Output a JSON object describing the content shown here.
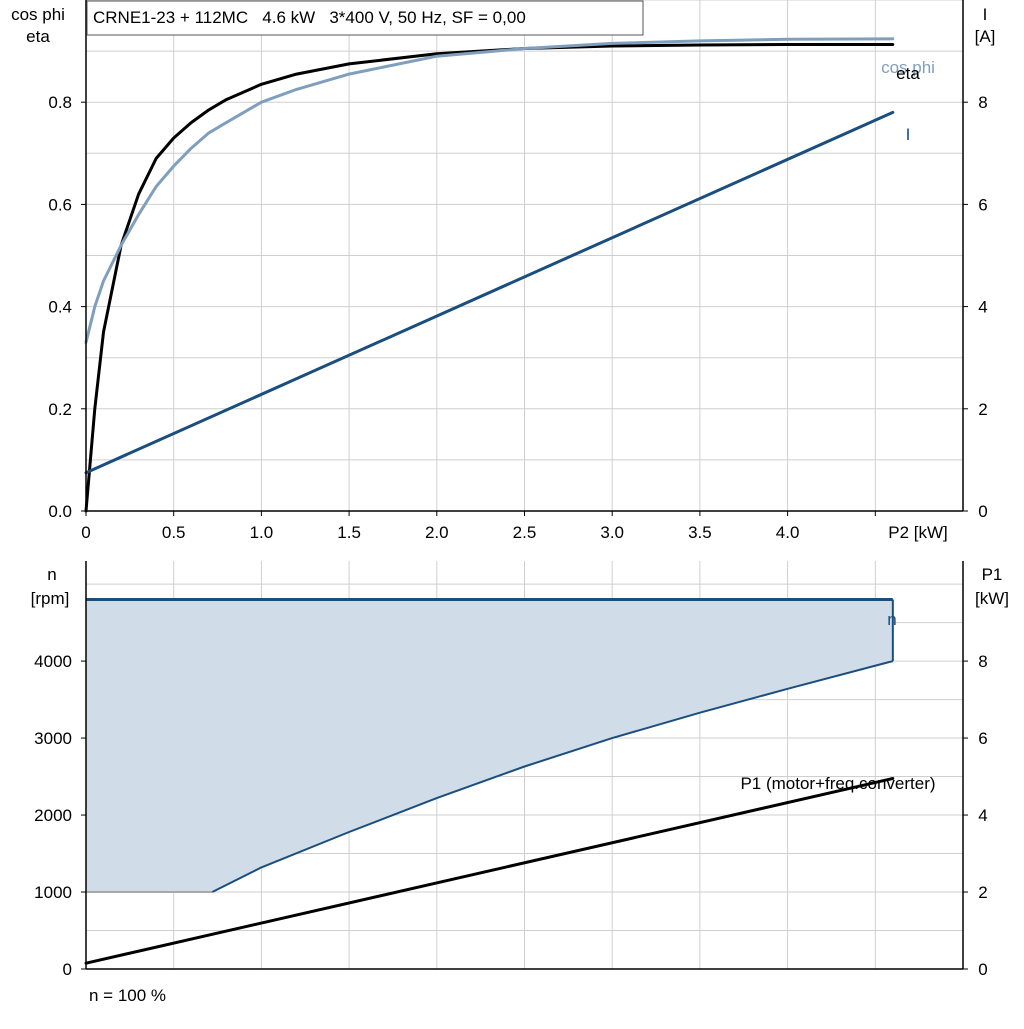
{
  "colors": {
    "grid": "#cfcfcf",
    "axis": "#000000",
    "eta": "#000000",
    "cosphi": "#7f9fbd",
    "current": "#1a4e7f",
    "n_line": "#1a4e7f",
    "n_fill": "#d0dce8",
    "p1": "#000000"
  },
  "chart_data": [
    {
      "type": "line",
      "title": "CRNE1-23 + 112MC   4.6 kW   3*400 V, 50 Hz, SF = 0,00",
      "xlabel": "P2 [kW]",
      "ylabel_left": [
        "cos phi",
        "eta"
      ],
      "ylabel_right": [
        "I",
        "[A]"
      ],
      "xlim": [
        0,
        5
      ],
      "ylim_left": [
        0,
        1
      ],
      "ylim_right": [
        0,
        10
      ],
      "x_ticks": [
        0,
        0.5,
        1.0,
        1.5,
        2.0,
        2.5,
        3.0,
        3.5,
        4.0
      ],
      "x_tick_labels": [
        "0",
        "0.5",
        "1.0",
        "1.5",
        "2.0",
        "2.5",
        "3.0",
        "3.5",
        "4.0"
      ],
      "y_left_ticks": [
        0,
        0.2,
        0.4,
        0.6,
        0.8
      ],
      "y_left_tick_labels": [
        "0.0",
        "0.2",
        "0.4",
        "0.6",
        "0.8"
      ],
      "y_right_ticks": [
        0,
        2,
        4,
        6,
        8
      ],
      "y_right_tick_labels": [
        "0",
        "2",
        "4",
        "6",
        "8"
      ],
      "grid": true,
      "series": [
        {
          "name": "eta",
          "axis": "left",
          "x": [
            0,
            0.05,
            0.1,
            0.2,
            0.3,
            0.4,
            0.5,
            0.6,
            0.7,
            0.8,
            1.0,
            1.2,
            1.5,
            2.0,
            2.5,
            3.0,
            3.5,
            4.0,
            4.6
          ],
          "y": [
            0.0,
            0.2,
            0.35,
            0.52,
            0.62,
            0.69,
            0.73,
            0.76,
            0.785,
            0.805,
            0.835,
            0.855,
            0.875,
            0.895,
            0.905,
            0.91,
            0.912,
            0.913,
            0.913
          ]
        },
        {
          "name": "cos phi",
          "axis": "left",
          "x": [
            0,
            0.05,
            0.1,
            0.2,
            0.3,
            0.4,
            0.5,
            0.6,
            0.7,
            0.8,
            1.0,
            1.2,
            1.5,
            2.0,
            2.5,
            3.0,
            3.5,
            4.0,
            4.6
          ],
          "y": [
            0.33,
            0.4,
            0.45,
            0.52,
            0.58,
            0.635,
            0.675,
            0.71,
            0.74,
            0.76,
            0.8,
            0.825,
            0.855,
            0.89,
            0.905,
            0.915,
            0.92,
            0.923,
            0.924
          ]
        },
        {
          "name": "I",
          "axis": "right",
          "x": [
            0,
            4.6
          ],
          "y": [
            0.75,
            7.8
          ]
        }
      ]
    },
    {
      "type": "area",
      "xlabel": "",
      "ylabel_left": [
        "n",
        "[rpm]"
      ],
      "ylabel_right": [
        "P1",
        "[kW]"
      ],
      "xlim": [
        0,
        5
      ],
      "ylim_left": [
        0,
        5300
      ],
      "ylim_right": [
        0,
        10.6
      ],
      "y_left_ticks": [
        0,
        1000,
        2000,
        3000,
        4000
      ],
      "y_left_tick_labels": [
        "0",
        "1000",
        "2000",
        "3000",
        "4000"
      ],
      "y_right_ticks": [
        0,
        2,
        4,
        6,
        8
      ],
      "y_right_tick_labels": [
        "0",
        "2",
        "4",
        "6",
        "8"
      ],
      "grid": true,
      "footnote": "n = 100 %",
      "series": [
        {
          "name": "n",
          "axis": "left",
          "upper_x": [
            0,
            4.6
          ],
          "upper_y": [
            4800,
            4800
          ],
          "lower_x": [
            0,
            0.72,
            1.0,
            1.5,
            2.0,
            2.5,
            3.0,
            3.5,
            4.0,
            4.6
          ],
          "lower_y": [
            1000,
            1000,
            1320,
            1780,
            2220,
            2630,
            3000,
            3330,
            3640,
            4000
          ]
        },
        {
          "name": "P1 (motor+freq.converter)",
          "axis": "right",
          "x": [
            0,
            4.6
          ],
          "y": [
            0.15,
            4.95
          ]
        }
      ]
    }
  ]
}
